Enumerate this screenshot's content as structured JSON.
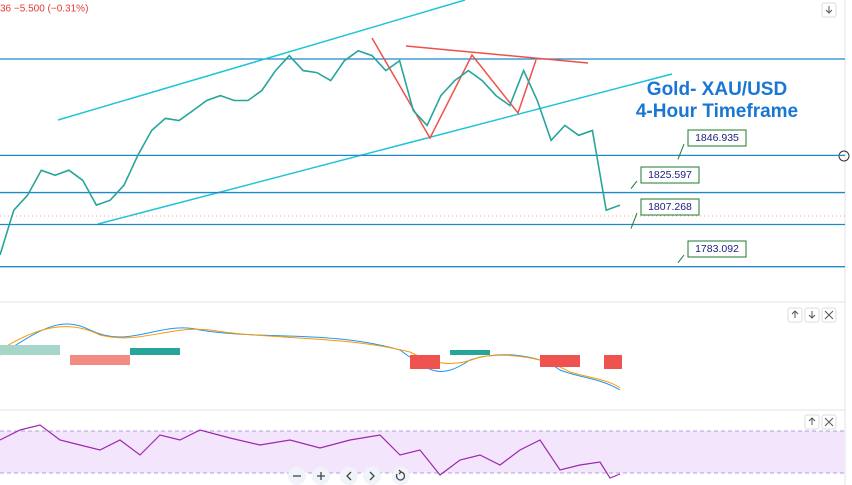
{
  "chart_data": {
    "type": "line",
    "quote": "36  −5.500 (−0.31%)",
    "title": "Gold- XAU/USD",
    "subtitle": "4-Hour Timeframe",
    "values": [
      1789.8,
      1815.5,
      1824.1,
      1838.4,
      1835.5,
      1838.4,
      1832.6,
      1818.4,
      1821.2,
      1829.8,
      1846.9,
      1861.2,
      1868.1,
      1866.9,
      1872.6,
      1878.4,
      1881.2,
      1878.4,
      1878.4,
      1884.1,
      1895.5,
      1904.1,
      1895.5,
      1894.4,
      1889.8,
      1901.2,
      1906.9,
      1904.1,
      1895.5,
      1901.2,
      1872.6,
      1864.1,
      1881.2,
      1889.8,
      1895.5,
      1889.8,
      1881.2,
      1875.5,
      1895.5,
      1878.4,
      1855.5,
      1864.1,
      1858.4,
      1861.2,
      1815.5,
      1818.4
    ],
    "color": "#26a69a",
    "ylim": [
      1764,
      1936
    ],
    "price_labels": [
      1846.935,
      1825.597,
      1807.268,
      1783.092
    ]
  }
}
